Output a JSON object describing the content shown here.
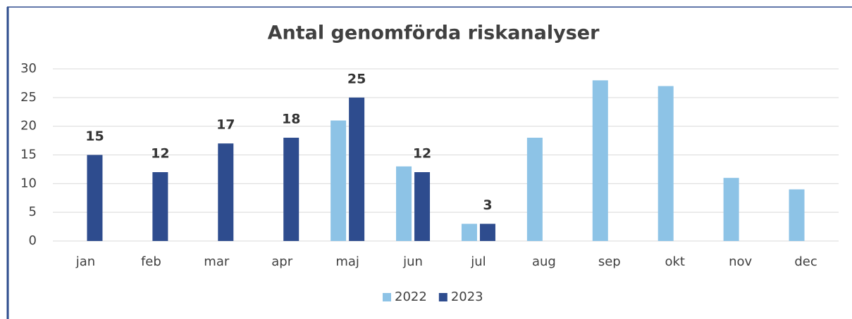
{
  "chart_data": {
    "type": "bar",
    "title": "Antal genomförda riskanalyser",
    "categories": [
      "jan",
      "feb",
      "mar",
      "apr",
      "maj",
      "jun",
      "jul",
      "aug",
      "sep",
      "okt",
      "nov",
      "dec"
    ],
    "series": [
      {
        "name": "2022",
        "color": "#8dc3e6",
        "show_labels": false,
        "values": [
          null,
          null,
          null,
          null,
          21,
          13,
          3,
          18,
          28,
          27,
          11,
          9
        ]
      },
      {
        "name": "2023",
        "color": "#2e4c8e",
        "show_labels": true,
        "values": [
          15,
          12,
          17,
          18,
          25,
          12,
          3,
          null,
          null,
          null,
          null,
          null
        ]
      }
    ],
    "ylim": [
      0,
      30
    ],
    "yticks": [
      0,
      5,
      10,
      15,
      20,
      25,
      30
    ],
    "grid": true,
    "legend": "bottom"
  }
}
